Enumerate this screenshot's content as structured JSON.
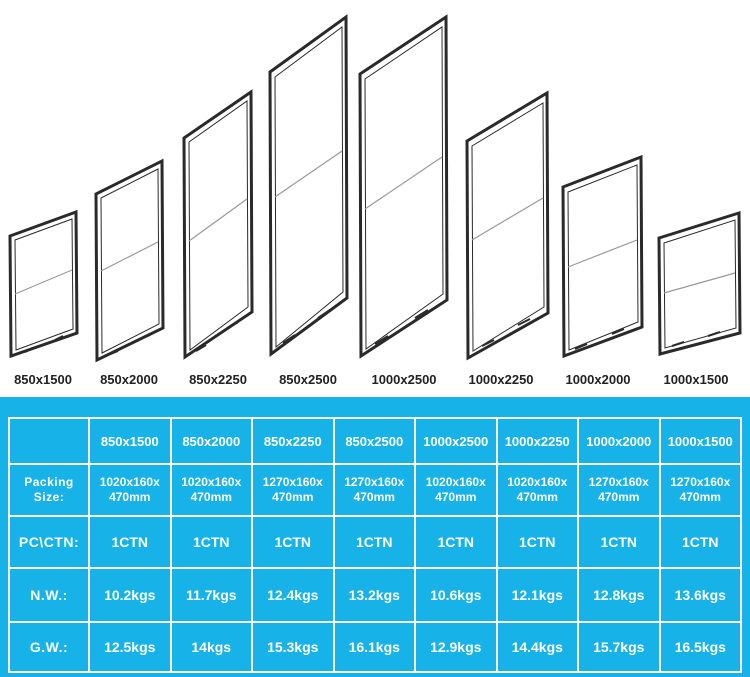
{
  "frames": [
    {
      "label": "850x1500"
    },
    {
      "label": "850x2000"
    },
    {
      "label": "850x2250"
    },
    {
      "label": "850x2500"
    },
    {
      "label": "1000x2500"
    },
    {
      "label": "1000x2250"
    },
    {
      "label": "1000x2000"
    },
    {
      "label": "1000x1500"
    }
  ],
  "table": {
    "sizes": [
      "850x1500",
      "850x2000",
      "850x2250",
      "850x2500",
      "1000x2500",
      "1000x2250",
      "1000x2000",
      "1000x1500"
    ],
    "packing_label_1": "Packing",
    "packing_label_2": "Size:",
    "packing": [
      [
        "1020x160x",
        "470mm"
      ],
      [
        "1020x160x",
        "470mm"
      ],
      [
        "1270x160x",
        "470mm"
      ],
      [
        "1270x160x",
        "470mm"
      ],
      [
        "1020x160x",
        "470mm"
      ],
      [
        "1020x160x",
        "470mm"
      ],
      [
        "1270x160x",
        "470mm"
      ],
      [
        "1270x160x",
        "470mm"
      ]
    ],
    "pc_label": "PC\\CTN:",
    "pc": [
      "1CTN",
      "1CTN",
      "1CTN",
      "1CTN",
      "1CTN",
      "1CTN",
      "1CTN",
      "1CTN"
    ],
    "nw_label": "N.W.:",
    "nw": [
      "10.2kgs",
      "11.7kgs",
      "12.4kgs",
      "13.2kgs",
      "10.6kgs",
      "12.1kgs",
      "12.8kgs",
      "13.6kgs"
    ],
    "gw_label": "G.W.:",
    "gw": [
      "12.5kgs",
      "14kgs",
      "15.3kgs",
      "16.1kgs",
      "12.9kgs",
      "14.4kgs",
      "15.7kgs",
      "16.5kgs"
    ]
  },
  "colors": {
    "panel": "#17b3e8",
    "frame": "#2a2a2a"
  }
}
